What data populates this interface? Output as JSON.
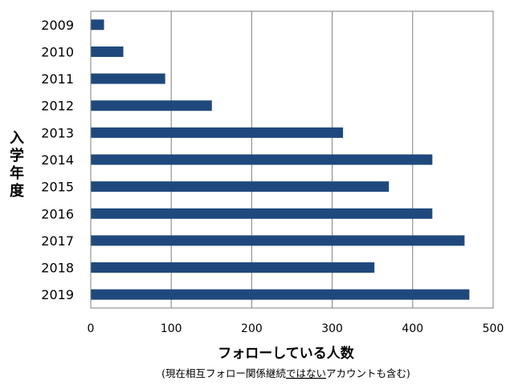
{
  "chart_data": {
    "type": "bar",
    "orientation": "horizontal",
    "categories": [
      "2009",
      "2010",
      "2011",
      "2012",
      "2013",
      "2014",
      "2015",
      "2016",
      "2017",
      "2018",
      "2019"
    ],
    "values": [
      16,
      40,
      92,
      150,
      313,
      424,
      370,
      424,
      464,
      352,
      470
    ],
    "xlim": [
      0,
      500
    ],
    "xticks": [
      "0",
      "100",
      "200",
      "300",
      "400",
      "500"
    ],
    "ylabel": "入学年度",
    "xlabel": "フォローしている人数",
    "xlabel_note_parts": {
      "before": "(現在相互フォロー関係継続",
      "underlined": "ではない",
      "after": "アカウントも含む)"
    },
    "grid": "vertical",
    "bar_color": "#1f497d",
    "legend": "none"
  }
}
